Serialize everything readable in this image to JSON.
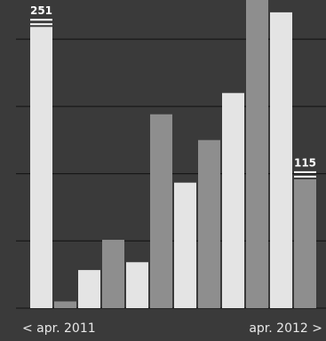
{
  "chart_data": {
    "type": "bar",
    "categories": [
      "< apr. 2011",
      null,
      null,
      null,
      null,
      null,
      null,
      null,
      null,
      null,
      null,
      "apr. 2012 >"
    ],
    "values": [
      251,
      6,
      34,
      61,
      41,
      173,
      112,
      150,
      192,
      275,
      264,
      115
    ],
    "value_labels": [
      "251",
      null,
      null,
      null,
      null,
      null,
      null,
      null,
      null,
      null,
      null,
      "115"
    ],
    "colors": [
      "#e4e4e4",
      "#8e8e8e",
      "#e4e4e4",
      "#8e8e8e",
      "#e4e4e4",
      "#8e8e8e",
      "#e4e4e4",
      "#8e8e8e",
      "#e4e4e4",
      "#8e8e8e",
      "#e4e4e4",
      "#8e8e8e"
    ],
    "ylim": [
      0,
      275
    ],
    "yticks": [
      0,
      60,
      120,
      180,
      240
    ],
    "grid": true
  }
}
